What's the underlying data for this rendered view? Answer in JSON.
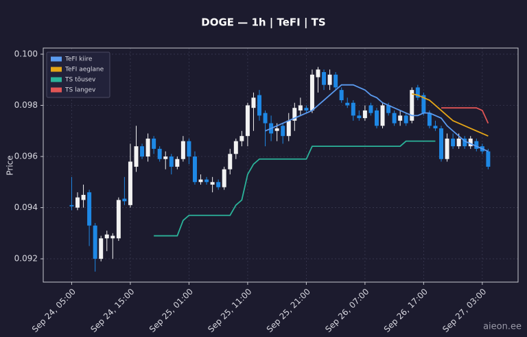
{
  "chart_data": {
    "type": "candlestick",
    "title": "DOGE — 1h  |  TeFI  |  TS",
    "y_label": "Price",
    "watermark": "aieon.ee",
    "categories": [
      "Sep 24, 05:00",
      null,
      null,
      null,
      null,
      null,
      null,
      null,
      null,
      null,
      "Sep 24, 15:00",
      null,
      null,
      null,
      null,
      null,
      null,
      null,
      null,
      null,
      "Sep 25, 01:00",
      null,
      null,
      null,
      null,
      null,
      null,
      null,
      null,
      null,
      "Sep 25, 11:00",
      null,
      null,
      null,
      null,
      null,
      null,
      null,
      null,
      null,
      "Sep 25, 21:00",
      null,
      null,
      null,
      null,
      null,
      null,
      null,
      null,
      null,
      "Sep 26, 07:00",
      null,
      null,
      null,
      null,
      null,
      null,
      null,
      null,
      null,
      "Sep 26, 17:00",
      null,
      null,
      null,
      null,
      null,
      null,
      null,
      null,
      null,
      "Sep 27, 03:00",
      null
    ],
    "open": [
      0.0941,
      0.094,
      0.0943,
      0.0946,
      0.0933,
      0.092,
      0.0928,
      0.0928,
      0.0928,
      0.09435,
      0.0941,
      0.0956,
      0.0964,
      0.096,
      0.0967,
      0.0963,
      0.0959,
      0.096,
      0.0956,
      0.0959,
      0.0966,
      0.096,
      0.095,
      0.0951,
      0.0949,
      0.095,
      0.0948,
      0.0955,
      0.0961,
      0.0966,
      0.0968,
      0.0979,
      0.0984,
      0.0977,
      0.0973,
      0.097,
      0.0972,
      0.0968,
      0.0974,
      0.0978,
      0.0979,
      0.0978,
      0.0991,
      0.0993,
      0.0988,
      0.0992,
      0.0986,
      0.0981,
      0.0981,
      0.0976,
      0.0975,
      0.098,
      0.0978,
      0.0972,
      0.098,
      0.0977,
      0.0974,
      0.0976,
      0.0974,
      0.0987,
      0.0984,
      0.0977,
      0.0972,
      0.0971,
      0.0959,
      0.0967,
      0.0964,
      0.0967,
      0.0964,
      0.0966,
      0.0964,
      0.0962
    ],
    "high": [
      0.0952,
      0.0946,
      0.0949,
      0.0947,
      0.0934,
      0.0929,
      0.0931,
      0.093,
      0.0944,
      0.0952,
      0.0965,
      0.0972,
      0.0965,
      0.0969,
      0.0968,
      0.0964,
      0.0962,
      0.0961,
      0.096,
      0.0968,
      0.0967,
      0.0962,
      0.0953,
      0.0952,
      0.0952,
      0.0951,
      0.0956,
      0.0963,
      0.0967,
      0.097,
      0.0981,
      0.0985,
      0.0986,
      0.0978,
      0.0976,
      0.0973,
      0.0973,
      0.0977,
      0.0981,
      0.0983,
      0.098,
      0.0994,
      0.0995,
      0.0994,
      0.0994,
      0.0993,
      0.0987,
      0.0983,
      0.0982,
      0.0978,
      0.098,
      0.0981,
      0.0979,
      0.0981,
      0.0981,
      0.0978,
      0.0978,
      0.0977,
      0.0987,
      0.0988,
      0.0985,
      0.0978,
      0.0974,
      0.0972,
      0.0969,
      0.0969,
      0.0969,
      0.0968,
      0.0968,
      0.0967,
      0.0965,
      0.0963
    ],
    "low": [
      0.0939,
      0.0939,
      0.094,
      0.0925,
      0.0915,
      0.0919,
      0.0923,
      0.092,
      0.0927,
      0.0941,
      0.094,
      0.0954,
      0.0959,
      0.0958,
      0.0961,
      0.0958,
      0.0955,
      0.0953,
      0.0955,
      0.0958,
      0.0957,
      0.0949,
      0.0949,
      0.0949,
      0.0946,
      0.0947,
      0.0947,
      0.0953,
      0.0959,
      0.0964,
      0.0964,
      0.097,
      0.0974,
      0.0964,
      0.0966,
      0.0966,
      0.0965,
      0.0966,
      0.097,
      0.0976,
      0.0977,
      0.0977,
      0.0985,
      0.0986,
      0.0986,
      0.0986,
      0.0981,
      0.0979,
      0.0974,
      0.0974,
      0.0974,
      0.0976,
      0.0971,
      0.0971,
      0.0976,
      0.0972,
      0.0972,
      0.0972,
      0.0973,
      0.0982,
      0.0976,
      0.0971,
      0.097,
      0.0958,
      0.0958,
      0.0963,
      0.0963,
      0.0963,
      0.0963,
      0.0962,
      0.0961,
      0.0955
    ],
    "close": [
      0.09405,
      0.0944,
      0.0945,
      0.0933,
      0.092,
      0.0928,
      0.09295,
      0.0929,
      0.0943,
      0.09425,
      0.0958,
      0.0964,
      0.096,
      0.0967,
      0.0963,
      0.0959,
      0.096,
      0.0956,
      0.0959,
      0.0966,
      0.096,
      0.095,
      0.0951,
      0.095,
      0.095,
      0.0948,
      0.0955,
      0.0961,
      0.0966,
      0.0968,
      0.098,
      0.0983,
      0.0976,
      0.0973,
      0.0969,
      0.0971,
      0.0968,
      0.0974,
      0.0979,
      0.098,
      0.0978,
      0.0992,
      0.0994,
      0.0988,
      0.0992,
      0.0987,
      0.0982,
      0.098,
      0.0976,
      0.0975,
      0.0978,
      0.0977,
      0.0972,
      0.098,
      0.0977,
      0.0973,
      0.0976,
      0.0973,
      0.0986,
      0.0983,
      0.0977,
      0.0972,
      0.0971,
      0.0959,
      0.0967,
      0.0964,
      0.0967,
      0.0964,
      0.0967,
      0.0963,
      0.0962,
      0.0956
    ],
    "up_color": "#f2f2f2",
    "down_color": "#1e88e5",
    "series": [
      {
        "name": "TeFI kiire",
        "color": "#5b9bf0",
        "values": [
          null,
          null,
          null,
          null,
          null,
          null,
          null,
          null,
          null,
          null,
          null,
          null,
          null,
          null,
          null,
          null,
          null,
          null,
          null,
          null,
          null,
          null,
          null,
          null,
          null,
          null,
          null,
          null,
          null,
          null,
          null,
          null,
          null,
          0.097,
          0.0971,
          0.0972,
          0.0973,
          0.0974,
          0.0975,
          0.0976,
          0.0977,
          0.0978,
          0.098,
          0.0982,
          0.0984,
          0.0986,
          0.0988,
          0.0988,
          0.0988,
          0.0987,
          0.0986,
          0.0984,
          0.0983,
          0.0981,
          0.098,
          0.0979,
          0.0978,
          0.0977,
          0.0976,
          0.0976,
          0.0977,
          0.0977,
          0.0976,
          0.0975,
          0.0972,
          0.097,
          0.0968,
          0.0966,
          0.0965,
          0.0964,
          0.0963,
          0.0962
        ]
      },
      {
        "name": "TeFI aeglane",
        "color": "#e5a617",
        "values": [
          null,
          null,
          null,
          null,
          null,
          null,
          null,
          null,
          null,
          null,
          null,
          null,
          null,
          null,
          null,
          null,
          null,
          null,
          null,
          null,
          null,
          null,
          null,
          null,
          null,
          null,
          null,
          null,
          null,
          null,
          null,
          null,
          null,
          null,
          null,
          null,
          null,
          null,
          null,
          null,
          null,
          null,
          null,
          null,
          null,
          null,
          null,
          null,
          null,
          null,
          null,
          null,
          null,
          null,
          null,
          null,
          null,
          null,
          0.09845,
          0.0984,
          0.0983,
          0.0982,
          0.098,
          0.0978,
          0.0976,
          0.0974,
          0.0973,
          0.0972,
          0.0971,
          0.097,
          0.0969,
          0.0968
        ]
      },
      {
        "name": "TS tõusev",
        "color": "#2bb39a",
        "values": [
          null,
          null,
          null,
          null,
          null,
          null,
          null,
          null,
          null,
          null,
          null,
          null,
          null,
          null,
          0.0929,
          0.0929,
          0.0929,
          0.0929,
          0.0929,
          0.0935,
          0.0937,
          0.0937,
          0.0937,
          0.0937,
          0.0937,
          0.0937,
          0.0937,
          0.0937,
          0.0941,
          0.0943,
          0.0953,
          0.0957,
          0.0959,
          0.0959,
          0.0959,
          0.0959,
          0.0959,
          0.0959,
          0.0959,
          0.0959,
          0.0959,
          0.0964,
          0.0964,
          0.0964,
          0.0964,
          0.0964,
          0.0964,
          0.0964,
          0.0964,
          0.0964,
          0.0964,
          0.0964,
          0.0964,
          0.0964,
          0.0964,
          0.0964,
          0.0964,
          0.0966,
          0.0966,
          0.0966,
          0.0966,
          0.0966,
          0.0966,
          null,
          null,
          null,
          null,
          null,
          null,
          null,
          null,
          null
        ]
      },
      {
        "name": "TS langev",
        "color": "#e05555",
        "values": [
          null,
          null,
          null,
          null,
          null,
          null,
          null,
          null,
          null,
          null,
          null,
          null,
          null,
          null,
          null,
          null,
          null,
          null,
          null,
          null,
          null,
          null,
          null,
          null,
          null,
          null,
          null,
          null,
          null,
          null,
          null,
          null,
          null,
          null,
          null,
          null,
          null,
          null,
          null,
          null,
          null,
          null,
          null,
          null,
          null,
          null,
          null,
          null,
          null,
          null,
          null,
          null,
          null,
          null,
          null,
          null,
          null,
          null,
          null,
          null,
          null,
          null,
          null,
          0.0979,
          0.0979,
          0.0979,
          0.0979,
          0.0979,
          0.0979,
          0.0979,
          0.0978,
          0.0973
        ]
      }
    ],
    "xlim": [
      -4.85,
      76.1
    ],
    "ylim": [
      0.09109,
      0.10024
    ],
    "yticks": [
      0.092,
      0.094,
      0.096,
      0.098,
      {
        "value": 0.1,
        "label": "0.100"
      }
    ],
    "grid": true,
    "legend": "upper left"
  }
}
